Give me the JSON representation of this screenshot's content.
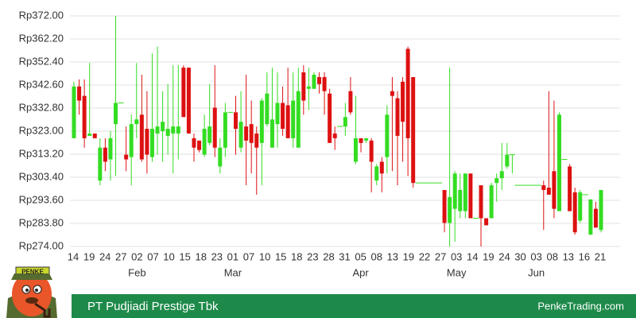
{
  "chart_data": {
    "type": "candlestick",
    "title": "PT Pudjiadi Prestige Tbk",
    "source": "PenkeTrading.com",
    "logo_text": "PENKE",
    "up_color": "#33dd22",
    "down_color": "#dd1111",
    "grid": true,
    "ylim": [
      274,
      372
    ],
    "yticks": [
      {
        "value": 274,
        "label": "Rp274.00"
      },
      {
        "value": 283.8,
        "label": "Rp283.80"
      },
      {
        "value": 293.6,
        "label": "Rp293.60"
      },
      {
        "value": 303.4,
        "label": "Rp303.40"
      },
      {
        "value": 313.2,
        "label": "Rp313.20"
      },
      {
        "value": 323,
        "label": "Rp323.00"
      },
      {
        "value": 332.8,
        "label": "Rp332.80"
      },
      {
        "value": 342.6,
        "label": "Rp342.60"
      },
      {
        "value": 352.4,
        "label": "Rp352.40"
      },
      {
        "value": 362.2,
        "label": "Rp362.20"
      },
      {
        "value": 372,
        "label": "Rp372.00"
      }
    ],
    "xtick_labels": [
      "14",
      "19",
      "24",
      "27",
      "02",
      "07",
      "10",
      "15",
      "18",
      "23",
      "01",
      "07",
      "10",
      "15",
      "18",
      "23",
      "28",
      "31",
      "05",
      "08",
      "13",
      "19",
      "22",
      "27",
      "03",
      "14",
      "19",
      "24",
      "30",
      "03",
      "08",
      "13",
      "16",
      "21"
    ],
    "months": [
      {
        "label": "Feb",
        "tick": 4
      },
      {
        "label": "Mar",
        "tick": 10
      },
      {
        "label": "Apr",
        "tick": 18
      },
      {
        "label": "May",
        "tick": 24
      },
      {
        "label": "Jun",
        "tick": 29
      }
    ],
    "open": [
      320,
      342,
      338,
      321,
      322,
      302,
      316,
      311,
      326,
      335,
      313,
      312,
      326,
      330,
      324,
      312,
      322,
      323,
      321,
      322,
      322,
      350,
      350,
      320,
      319,
      313,
      318,
      333,
      308,
      316,
      331,
      331,
      316,
      325,
      326,
      322,
      318,
      326,
      316,
      326,
      335,
      334,
      320,
      316,
      348,
      341,
      341,
      346,
      346,
      339,
      322,
      325,
      325,
      340,
      310,
      320,
      319,
      319,
      302,
      310,
      312,
      340,
      337,
      344,
      358,
      346,
      301,
      301,
      301,
      301,
      301,
      298,
      284,
      290,
      289,
      289,
      305,
      286,
      300,
      286,
      286,
      301,
      303,
      308,
      313,
      300,
      300,
      300,
      300,
      300,
      300,
      299,
      306,
      289,
      311,
      308,
      297,
      285,
      296,
      279,
      290,
      281
    ],
    "high": [
      344,
      345,
      345,
      352,
      322,
      320,
      320,
      323,
      372,
      335,
      325,
      330,
      352,
      347,
      340,
      356,
      359,
      340,
      343,
      351,
      351,
      351,
      350,
      322,
      319,
      330,
      343,
      351,
      320,
      335,
      331,
      338,
      340,
      347,
      336,
      325,
      337,
      348,
      350,
      348,
      342,
      350,
      348,
      350,
      351,
      350,
      348,
      348,
      348,
      341,
      325,
      325,
      335,
      346,
      338,
      320,
      320,
      320,
      309,
      312,
      334,
      346,
      340,
      346,
      359,
      346,
      301,
      301,
      301,
      301,
      301,
      298,
      350,
      306,
      305,
      305,
      305,
      286,
      300,
      286,
      301,
      305,
      318,
      318,
      313,
      300,
      300,
      300,
      300,
      300,
      302,
      340,
      336,
      331,
      311,
      309,
      299,
      298,
      296,
      294,
      293,
      298
    ],
    "low": [
      320,
      330,
      316,
      321,
      320,
      300,
      306,
      302,
      304,
      335,
      306,
      300,
      320,
      310,
      305,
      310,
      313,
      310,
      313,
      305,
      311,
      329,
      322,
      310,
      314,
      312,
      317,
      312,
      305,
      312,
      331,
      313,
      314,
      300,
      305,
      296,
      300,
      325,
      316,
      316,
      321,
      320,
      316,
      316,
      330,
      332,
      341,
      339,
      330,
      318,
      315,
      325,
      321,
      330,
      309,
      314,
      318,
      297,
      300,
      297,
      305,
      306,
      300,
      310,
      304,
      299,
      301,
      301,
      301,
      301,
      301,
      280,
      274,
      276,
      286,
      286,
      286,
      286,
      274,
      283,
      286,
      293,
      298,
      307,
      305,
      300,
      300,
      300,
      300,
      300,
      281,
      296,
      286,
      289,
      311,
      289,
      279,
      284,
      296,
      279,
      282,
      280
    ],
    "close": [
      342,
      336,
      320,
      322,
      320,
      316,
      310,
      320,
      335,
      335,
      311,
      326,
      328,
      311,
      313,
      324,
      325,
      327,
      324,
      325,
      325,
      329,
      322,
      316,
      315,
      324,
      325,
      316,
      316,
      331,
      331,
      324,
      327,
      319,
      318,
      316,
      336,
      339,
      328,
      335,
      324,
      320,
      336,
      340,
      336,
      342,
      347,
      343,
      340,
      318,
      320,
      325,
      329,
      331,
      320,
      318,
      320,
      310,
      308,
      305,
      330,
      338,
      321,
      327,
      320,
      301,
      301,
      301,
      301,
      301,
      301,
      284,
      295,
      305,
      298,
      305,
      286,
      286,
      286,
      283,
      300,
      303,
      306,
      313,
      313,
      300,
      300,
      300,
      300,
      300,
      298,
      296,
      290,
      330,
      311,
      289,
      280,
      297,
      296,
      294,
      282,
      298
    ]
  }
}
